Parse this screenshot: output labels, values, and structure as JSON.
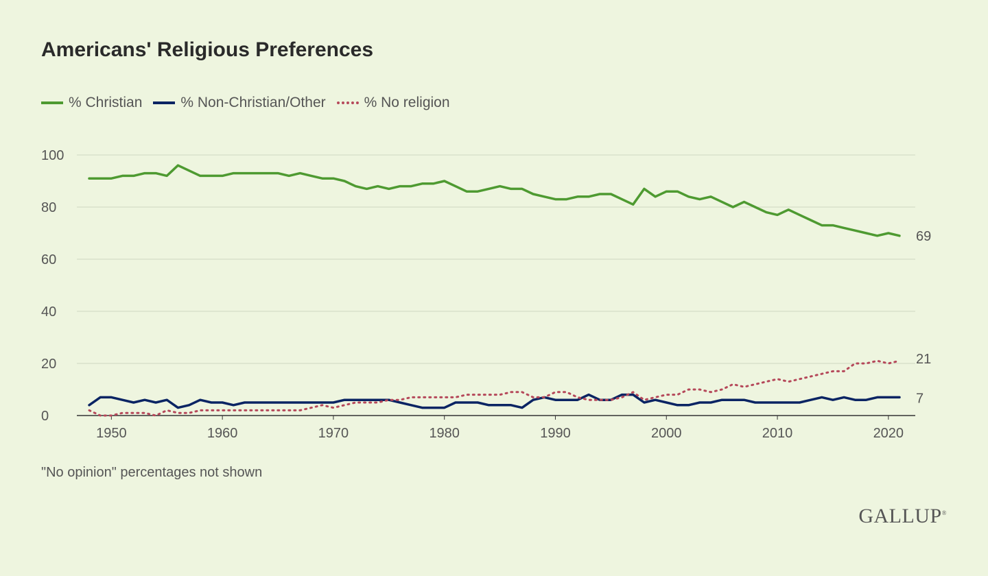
{
  "chart_data": {
    "type": "line",
    "title": "Americans' Religious Preferences",
    "note": "\"No opinion\" percentages not shown",
    "brand": "GALLUP",
    "ylim": [
      0,
      100
    ],
    "xlim": [
      1948,
      2021
    ],
    "yticks": [
      0,
      20,
      40,
      60,
      80,
      100
    ],
    "xticks": [
      1950,
      1960,
      1970,
      1980,
      1990,
      2000,
      2010,
      2020
    ],
    "grid": true,
    "legend_position": "top-left",
    "x": [
      1948,
      1949,
      1950,
      1951,
      1952,
      1953,
      1954,
      1955,
      1956,
      1957,
      1958,
      1959,
      1960,
      1961,
      1962,
      1963,
      1964,
      1965,
      1966,
      1967,
      1968,
      1969,
      1970,
      1971,
      1972,
      1973,
      1974,
      1975,
      1976,
      1977,
      1978,
      1979,
      1980,
      1981,
      1982,
      1983,
      1984,
      1985,
      1986,
      1987,
      1988,
      1989,
      1990,
      1991,
      1992,
      1993,
      1994,
      1995,
      1996,
      1997,
      1998,
      1999,
      2000,
      2001,
      2002,
      2003,
      2004,
      2005,
      2006,
      2007,
      2008,
      2009,
      2010,
      2011,
      2012,
      2013,
      2014,
      2015,
      2016,
      2017,
      2018,
      2019,
      2020,
      2021
    ],
    "series": [
      {
        "name": "% Christian",
        "color": "#4e9a31",
        "style": "solid",
        "end_label": "69",
        "values": [
          91,
          91,
          91,
          92,
          92,
          93,
          93,
          92,
          96,
          94,
          92,
          92,
          92,
          93,
          93,
          93,
          93,
          93,
          92,
          93,
          92,
          91,
          91,
          90,
          88,
          87,
          88,
          87,
          88,
          88,
          89,
          89,
          90,
          88,
          86,
          86,
          87,
          88,
          87,
          87,
          85,
          84,
          83,
          83,
          84,
          84,
          85,
          85,
          83,
          81,
          87,
          84,
          86,
          86,
          84,
          83,
          84,
          82,
          80,
          82,
          80,
          78,
          77,
          79,
          77,
          75,
          73,
          73,
          72,
          71,
          70,
          69,
          70,
          69
        ]
      },
      {
        "name": "% Non-Christian/Other",
        "color": "#0a2463",
        "style": "solid",
        "end_label": "7",
        "values": [
          4,
          7,
          7,
          6,
          5,
          6,
          5,
          6,
          3,
          4,
          6,
          5,
          5,
          4,
          5,
          5,
          5,
          5,
          5,
          5,
          5,
          5,
          5,
          6,
          6,
          6,
          6,
          6,
          5,
          4,
          3,
          3,
          3,
          5,
          5,
          5,
          4,
          4,
          4,
          3,
          6,
          7,
          6,
          6,
          6,
          8,
          6,
          6,
          8,
          8,
          5,
          6,
          5,
          4,
          4,
          5,
          5,
          6,
          6,
          6,
          5,
          5,
          5,
          5,
          5,
          6,
          7,
          6,
          7,
          6,
          6,
          7,
          7,
          7
        ]
      },
      {
        "name": "% No religion",
        "color": "#b5485a",
        "style": "dotted",
        "end_label": "21",
        "values": [
          2,
          0,
          0,
          1,
          1,
          1,
          0,
          2,
          1,
          1,
          2,
          2,
          2,
          2,
          2,
          2,
          2,
          2,
          2,
          2,
          3,
          4,
          3,
          4,
          5,
          5,
          5,
          6,
          6,
          7,
          7,
          7,
          7,
          7,
          8,
          8,
          8,
          8,
          9,
          9,
          7,
          7,
          9,
          9,
          7,
          6,
          6,
          6,
          7,
          9,
          6,
          7,
          8,
          8,
          10,
          10,
          9,
          10,
          12,
          11,
          12,
          13,
          14,
          13,
          14,
          15,
          16,
          17,
          17,
          20,
          20,
          21,
          20,
          21
        ]
      }
    ]
  }
}
